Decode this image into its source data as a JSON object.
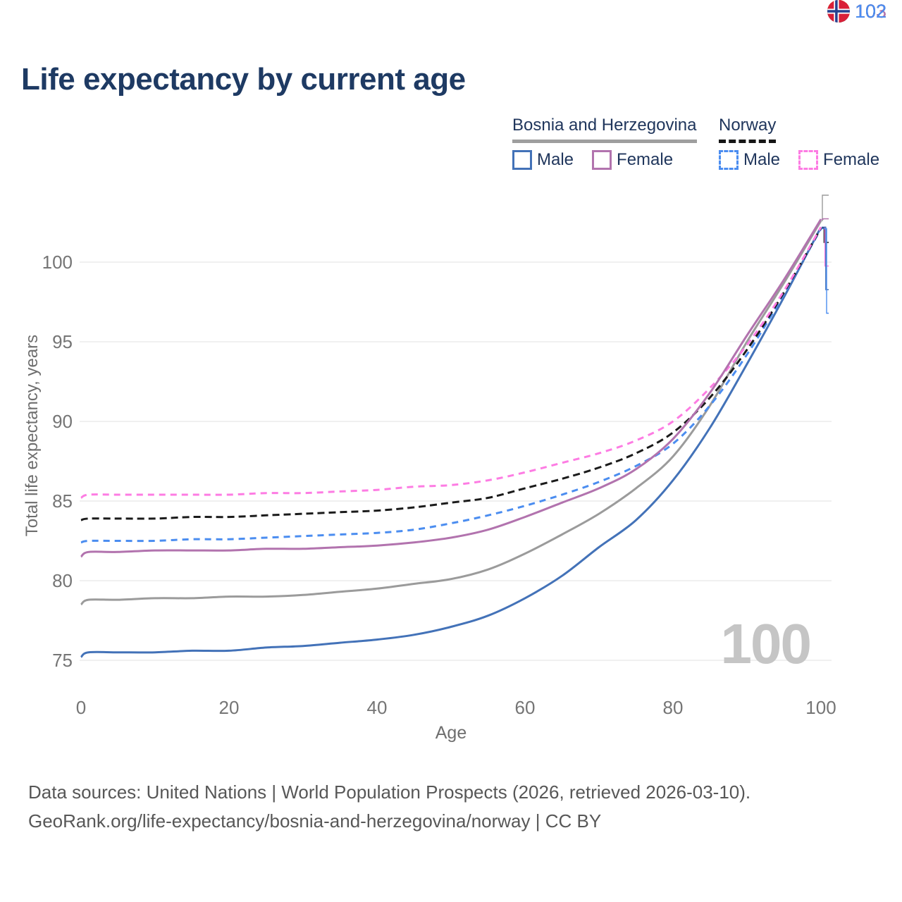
{
  "header": {
    "title": "Life expectancy by current age"
  },
  "legend": {
    "groups": [
      {
        "country": "Bosnia and Herzegovina",
        "line_style": "solid",
        "underline_color": "#9e9e9e",
        "items": [
          {
            "label": "Male",
            "color": "#4372b8",
            "dashed": false
          },
          {
            "label": "Female",
            "color": "#b273ae",
            "dashed": false
          }
        ]
      },
      {
        "country": "Norway",
        "line_style": "dashed",
        "underline_color": "#161616",
        "items": [
          {
            "label": "Male",
            "color": "#4b8df0",
            "dashed": true
          },
          {
            "label": "Female",
            "color": "#fd7ce3",
            "dashed": true
          }
        ]
      }
    ]
  },
  "chart_data": {
    "type": "line",
    "title": "Life expectancy by current age",
    "xlabel": "Age",
    "ylabel": "Total life expectancy, years",
    "xticks": [
      0,
      20,
      40,
      60,
      80,
      100
    ],
    "yticks": [
      75,
      80,
      85,
      90,
      95,
      100
    ],
    "xlim": [
      0,
      100
    ],
    "ylim": [
      73,
      104
    ],
    "grid": "horizontal",
    "legend_position": "top-right",
    "x": [
      0,
      1,
      5,
      10,
      15,
      20,
      25,
      30,
      35,
      40,
      45,
      50,
      55,
      60,
      65,
      70,
      75,
      80,
      85,
      90,
      95,
      100
    ],
    "series": [
      {
        "name": "Bosnia and Herzegovina — Male",
        "color": "#4372b8",
        "dash": null,
        "values": [
          75.2,
          75.5,
          75.5,
          75.5,
          75.6,
          75.6,
          75.8,
          75.9,
          76.1,
          76.3,
          76.6,
          77.1,
          77.8,
          78.9,
          80.3,
          82.1,
          83.8,
          86.3,
          89.6,
          93.6,
          97.8,
          102.2
        ]
      },
      {
        "name": "Bosnia and Herzegovina — Both sexes",
        "color": "#9b9b9b",
        "dash": null,
        "values": [
          78.5,
          78.8,
          78.8,
          78.9,
          78.9,
          79.0,
          79.0,
          79.1,
          79.3,
          79.5,
          79.8,
          80.1,
          80.7,
          81.7,
          82.9,
          84.2,
          85.8,
          87.8,
          91.0,
          95.0,
          98.7,
          102.6
        ]
      },
      {
        "name": "Norway — Male",
        "color": "#4b8df0",
        "dash": "9 7",
        "values": [
          82.4,
          82.5,
          82.5,
          82.5,
          82.6,
          82.6,
          82.7,
          82.8,
          82.9,
          83.0,
          83.2,
          83.6,
          84.1,
          84.7,
          85.4,
          86.2,
          87.2,
          88.6,
          91.0,
          94.2,
          98.0,
          102.1
        ]
      },
      {
        "name": "Norway — Both sexes",
        "color": "#1b1b1b",
        "dash": "10 6",
        "values": [
          83.8,
          83.9,
          83.9,
          83.9,
          84.0,
          84.0,
          84.1,
          84.2,
          84.3,
          84.4,
          84.6,
          84.9,
          85.2,
          85.8,
          86.4,
          87.1,
          88.0,
          89.3,
          91.5,
          94.5,
          98.1,
          102.15
        ]
      },
      {
        "name": "Norway — Female",
        "color": "#fd7ce3",
        "dash": "9 7",
        "values": [
          85.2,
          85.4,
          85.4,
          85.4,
          85.4,
          85.4,
          85.5,
          85.5,
          85.6,
          85.7,
          85.9,
          86.0,
          86.3,
          86.8,
          87.4,
          88.0,
          88.8,
          90.0,
          92.1,
          94.8,
          98.2,
          102.2
        ]
      },
      {
        "name": "Bosnia and Herzegovina — Female",
        "color": "#b273ae",
        "dash": null,
        "values": [
          81.5,
          81.8,
          81.8,
          81.9,
          81.9,
          81.9,
          82.0,
          82.0,
          82.1,
          82.2,
          82.4,
          82.7,
          83.2,
          84.0,
          84.9,
          85.8,
          87.0,
          88.9,
          91.8,
          95.4,
          98.9,
          102.7
        ]
      }
    ]
  },
  "endpoints": [
    {
      "flag": "bih",
      "value": "103",
      "color": "#9b9b9b",
      "series": "Bosnia and Herzegovina — Both sexes"
    },
    {
      "flag": "bih",
      "value": "103",
      "color": "#b273ae",
      "series": "Bosnia and Herzegovina — Female"
    },
    {
      "flag": "nor",
      "value": "102",
      "color": "#1b1b1b",
      "series": "Norway — Both sexes"
    },
    {
      "flag": "nor",
      "value": "102",
      "color": "#fd7ce3",
      "series": "Norway — Female"
    },
    {
      "flag": "bih",
      "value": "102",
      "color": "#4372b8",
      "series": "Bosnia and Herzegovina — Male"
    },
    {
      "flag": "nor",
      "value": "102",
      "color": "#4b8df0",
      "series": "Norway — Male"
    }
  ],
  "watermark": {
    "age_counter": "100"
  },
  "footer": {
    "line1": "Data sources: United Nations | World Population Prospects (2026, retrieved 2026-03-10).",
    "line2": "GeoRank.org/life-expectancy/bosnia-and-herzegovina/norway | CC BY"
  }
}
